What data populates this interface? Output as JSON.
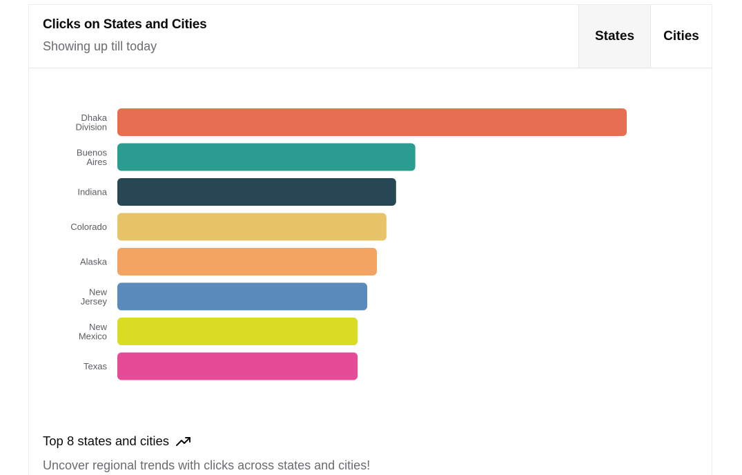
{
  "header": {
    "title": "Clicks on States and Cities",
    "subtitle": "Showing up till today"
  },
  "tabs": [
    {
      "label": "States",
      "active": true
    },
    {
      "label": "Cities",
      "active": false
    }
  ],
  "chart_data": {
    "type": "bar",
    "orientation": "horizontal",
    "categories": [
      [
        "Dhaka",
        "Division"
      ],
      [
        "Buenos",
        "Aires"
      ],
      [
        "Indiana"
      ],
      [
        "Colorado"
      ],
      [
        "Alaska"
      ],
      [
        "New",
        "Jersey"
      ],
      [
        "New",
        "Mexico"
      ],
      [
        "Texas"
      ]
    ],
    "values": [
      53,
      31,
      29,
      28,
      27,
      26,
      25,
      25
    ],
    "colors": [
      "#e76e50",
      "#2a9d90",
      "#274754",
      "#e8c468",
      "#f4a462",
      "#5b8bbd",
      "#d8dc22",
      "#e54c98"
    ],
    "title": "",
    "xlabel": "",
    "ylabel": "",
    "xlim": [
      0,
      53
    ],
    "grid": false,
    "legend": "none"
  },
  "footer": {
    "title": "Top 8 states and cities",
    "description": "Uncover regional trends with clicks across states and cities!",
    "icon": "trending-up-icon"
  }
}
